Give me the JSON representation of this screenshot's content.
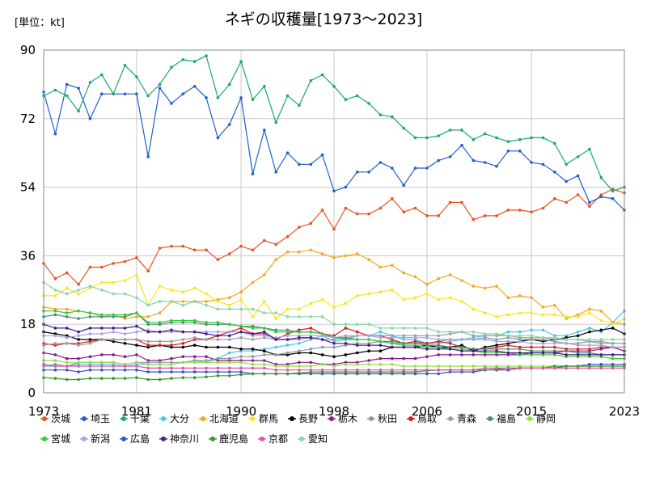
{
  "chart_data": {
    "type": "line",
    "title": "ネギの収穫量[1973〜2023]",
    "unit_label": "[単位：kt]",
    "xlabel": "",
    "ylabel": "",
    "ylim": [
      0,
      90
    ],
    "y_ticks": [
      0,
      18,
      36,
      54,
      72,
      90
    ],
    "x_ticks": [
      1973,
      1981,
      1990,
      1998,
      2006,
      2015,
      2023
    ],
    "grid": true,
    "legend_position": "bottom",
    "x": [
      1973,
      1974,
      1975,
      1976,
      1977,
      1978,
      1979,
      1980,
      1981,
      1982,
      1983,
      1984,
      1985,
      1986,
      1987,
      1988,
      1989,
      1990,
      1991,
      1992,
      1993,
      1994,
      1995,
      1996,
      1997,
      1998,
      1999,
      2000,
      2001,
      2002,
      2003,
      2004,
      2005,
      2006,
      2007,
      2008,
      2009,
      2010,
      2011,
      2012,
      2013,
      2014,
      2015,
      2016,
      2017,
      2018,
      2019,
      2020,
      2021,
      2022,
      2023
    ],
    "series": [
      {
        "name": "茨城",
        "color": "#e8531f",
        "values": [
          34,
          30,
          31.5,
          28.5,
          33,
          33,
          34,
          34.5,
          35.5,
          32,
          38,
          38.5,
          38.5,
          37.5,
          37.5,
          35,
          36.5,
          38.5,
          37.5,
          40,
          39,
          41,
          43.5,
          44.5,
          48,
          43,
          48.5,
          47,
          47,
          48.5,
          51,
          47.5,
          48.5,
          46.5,
          46.5,
          50,
          50,
          45.5,
          46.5,
          46.5,
          48,
          48,
          47.5,
          48.5,
          51,
          50,
          52,
          49,
          52,
          53.5,
          52.5
        ]
      },
      {
        "name": "埼玉",
        "color": "#1f5fd0",
        "values": [
          79,
          68,
          81,
          80,
          72,
          78.5,
          78.5,
          78.5,
          78.5,
          62,
          80,
          76,
          78.5,
          80.5,
          77.5,
          67,
          70.5,
          77.5,
          57.5,
          69,
          58,
          63,
          60,
          60,
          62.5,
          53,
          54,
          58,
          58,
          60.5,
          59,
          54.5,
          59,
          59,
          61,
          62,
          65,
          61,
          60.5,
          59.5,
          63.5,
          63.5,
          60.5,
          60,
          58,
          55.5,
          57,
          50,
          51.5,
          51,
          48
        ]
      },
      {
        "name": "千葉",
        "color": "#1aa774",
        "values": [
          78,
          79.5,
          78,
          74,
          81.5,
          83.5,
          78.5,
          86,
          83,
          78,
          81,
          85.5,
          87.5,
          87,
          88.5,
          77.5,
          81,
          87,
          77,
          80.5,
          71,
          78,
          75.5,
          82,
          83.5,
          80.5,
          77,
          78,
          76,
          73,
          72.5,
          69.5,
          67,
          67,
          67.5,
          69,
          69,
          66.5,
          68,
          67,
          66,
          66.5,
          67,
          67,
          65.5,
          60,
          62,
          64,
          56.5,
          53,
          54
        ]
      },
      {
        "name": "大分",
        "color": "#4fc3f0",
        "values": [
          7,
          7,
          7,
          7.5,
          7.5,
          7.5,
          7.5,
          7,
          7.5,
          7.5,
          7.5,
          7.5,
          8,
          8.5,
          8,
          9,
          10.5,
          11,
          11,
          11.5,
          12,
          12.5,
          13,
          14,
          15,
          13.5,
          14,
          15,
          15,
          16,
          15,
          14,
          14,
          13,
          13,
          13.5,
          14,
          14.5,
          15,
          15,
          16,
          16,
          16.5,
          16.5,
          15,
          15,
          16,
          17,
          16,
          18.5,
          21.5
        ]
      },
      {
        "name": "北海道",
        "color": "#f5a623",
        "values": [
          22.5,
          22,
          22,
          21.5,
          21,
          20,
          20.5,
          19.5,
          20,
          20,
          21,
          24,
          24,
          24,
          24,
          24.5,
          25,
          26.5,
          29,
          31,
          35,
          37,
          37,
          37.5,
          36.5,
          35.5,
          36,
          36.5,
          35,
          33,
          33.5,
          31.5,
          30.5,
          28.5,
          30,
          31,
          29.5,
          28,
          27.5,
          28,
          25,
          25.5,
          25,
          22.5,
          23,
          19.5,
          20.5,
          22,
          21.5,
          18.5,
          18
        ]
      },
      {
        "name": "群馬",
        "color": "#f6e71d",
        "values": [
          25.5,
          25.5,
          27.5,
          26,
          27.5,
          29,
          29,
          29.5,
          31,
          23,
          28,
          27,
          26.5,
          27.5,
          26,
          24,
          23,
          24.5,
          20,
          24,
          19.5,
          22,
          22,
          23.5,
          24.5,
          22.5,
          23.5,
          25.5,
          26,
          26.5,
          27,
          24.5,
          25,
          26,
          24.5,
          25,
          24,
          22,
          21,
          20,
          20.5,
          21,
          21,
          20.5,
          20.5,
          20,
          20,
          21,
          19,
          18,
          19.5
        ]
      },
      {
        "name": "長野",
        "color": "#000000",
        "values": [
          16,
          15.5,
          15,
          14,
          14,
          14,
          13.5,
          13,
          12.5,
          12,
          12.5,
          12,
          12,
          12.5,
          12,
          12,
          12,
          11.5,
          11.5,
          11,
          10,
          10,
          10.5,
          10.5,
          10,
          9.5,
          10,
          10.5,
          11,
          11,
          12,
          12,
          12,
          12.5,
          12,
          12,
          12.5,
          11,
          12,
          12.5,
          13,
          13.5,
          14,
          13.5,
          14,
          14.5,
          15,
          16,
          16.5,
          17,
          15.5
        ]
      },
      {
        "name": "栃木",
        "color": "#8b1a8b",
        "values": [
          10.5,
          10,
          9,
          9,
          9.5,
          10,
          10,
          9.5,
          10,
          8.5,
          8.5,
          9,
          9.5,
          9.5,
          9.5,
          8.5,
          8.5,
          8.5,
          8.5,
          8.5,
          7.5,
          7.5,
          8,
          8,
          7.5,
          7.5,
          8,
          8,
          8.5,
          9,
          9,
          9,
          9,
          9.5,
          10,
          10,
          10,
          10,
          10,
          10,
          10,
          10,
          10.5,
          10.5,
          10.5,
          11,
          11,
          11,
          11.5,
          12,
          11
        ]
      },
      {
        "name": "秋田",
        "color": "#8c97a3",
        "values": [
          7,
          7.5,
          7,
          8,
          8,
          8,
          8,
          7.5,
          8,
          8,
          8,
          8,
          8,
          8.5,
          8.5,
          9,
          9,
          9.5,
          9.5,
          10,
          10,
          10.5,
          11,
          11.5,
          12,
          12,
          12.5,
          13,
          13,
          13.5,
          13,
          13,
          13,
          13,
          13.5,
          14,
          14,
          14,
          14.5,
          14,
          14.5,
          14,
          14,
          14,
          13.5,
          13,
          13,
          13.5,
          13,
          13,
          13
        ]
      },
      {
        "name": "鳥取",
        "color": "#d81b1b",
        "values": [
          13,
          12.5,
          13,
          13,
          13.5,
          14,
          14,
          14,
          14,
          12.5,
          12.5,
          12.5,
          13,
          14,
          14,
          15,
          16,
          17,
          15.5,
          15.5,
          14,
          15.5,
          16.5,
          17,
          15.5,
          15,
          17,
          16,
          15,
          15,
          14,
          13,
          13.5,
          13,
          13.5,
          13,
          12,
          11.5,
          11.5,
          12,
          12.5,
          12,
          12,
          12,
          12,
          11.5,
          11.5,
          11.5,
          12,
          12,
          12
        ]
      },
      {
        "name": "青森",
        "color": "#9e9e9e",
        "values": [
          12.5,
          13,
          13,
          12.5,
          13,
          14,
          14,
          14,
          14,
          13.5,
          13.5,
          13.5,
          14,
          14.5,
          14,
          14,
          14,
          14.5,
          14,
          14.5,
          14,
          14,
          14,
          14.5,
          14,
          14,
          14.5,
          15,
          15,
          15,
          15,
          15,
          15,
          15,
          15,
          15.5,
          16,
          15,
          15,
          15,
          15,
          14.5,
          14.5,
          14.5,
          14,
          14,
          14,
          13.5,
          13.5,
          13,
          13
        ]
      },
      {
        "name": "福島",
        "color": "#4a8a72",
        "values": [
          20,
          20.5,
          20,
          19.5,
          20,
          20,
          20,
          20,
          21,
          18,
          18,
          18.5,
          18.5,
          18.5,
          18,
          18,
          18,
          17.5,
          17.5,
          17,
          16.5,
          16.5,
          16,
          16,
          15.5,
          14.5,
          14.5,
          14,
          14,
          13.5,
          13.5,
          13,
          13,
          12.5,
          12.5,
          12,
          12,
          11.5,
          11.5,
          11.5,
          11.5,
          11.5,
          11,
          11,
          11,
          11,
          10.5,
          10.5,
          10,
          10,
          10
        ]
      },
      {
        "name": "静岡",
        "color": "#90e040",
        "values": [
          8.5,
          8.5,
          8,
          8,
          8,
          8,
          8,
          7.5,
          8,
          7.5,
          7.5,
          7.5,
          8,
          8,
          8,
          8,
          8,
          8,
          7.5,
          7.5,
          7,
          7,
          7,
          7,
          7.5,
          7,
          7.5,
          7.5,
          7.5,
          7.5,
          7.5,
          7,
          7,
          7,
          7,
          7,
          7,
          7,
          7,
          7,
          7,
          7,
          7,
          7,
          7,
          7,
          7,
          7,
          7,
          7,
          7
        ]
      },
      {
        "name": "宮城",
        "color": "#33cc33",
        "values": [
          21.5,
          21.5,
          21,
          21.5,
          21,
          20.5,
          20.5,
          20.5,
          21,
          18.5,
          18.5,
          19,
          19,
          19,
          18.5,
          18.5,
          18,
          17.5,
          17,
          17,
          16,
          16,
          16,
          16,
          15.5,
          14.5,
          14,
          14,
          14,
          13.5,
          13,
          12.5,
          12.5,
          12,
          12,
          11.5,
          11.5,
          11,
          10.5,
          10.5,
          10.5,
          10,
          10,
          10,
          10,
          9.5,
          9.5,
          9.5,
          9.5,
          9,
          9
        ]
      },
      {
        "name": "新潟",
        "color": "#a3a3e8",
        "values": [
          15,
          15,
          14.5,
          15,
          15.5,
          15.5,
          16,
          15.5,
          16,
          16.5,
          16,
          16,
          16,
          16,
          16,
          16,
          16,
          16,
          15,
          15,
          14.5,
          15,
          15,
          15,
          15,
          14.5,
          15,
          15,
          15,
          14.5,
          14.5,
          14.5,
          14.5,
          14.5,
          14,
          14,
          14,
          14,
          14,
          13.5,
          13.5,
          13.5,
          13,
          13,
          13,
          13,
          12.5,
          12.5,
          12.5,
          12,
          12
        ]
      },
      {
        "name": "広島",
        "color": "#3a4fcc",
        "values": [
          6,
          6,
          6,
          5.5,
          6,
          6,
          6,
          6,
          6,
          5.5,
          5.5,
          5.5,
          5.5,
          5.5,
          5.5,
          5.5,
          5.5,
          5.5,
          5,
          5,
          5,
          5,
          5,
          5,
          5,
          5,
          5,
          5,
          5,
          5,
          5,
          5,
          5,
          5,
          5,
          5.5,
          5.5,
          5.5,
          6,
          6,
          6,
          6.5,
          6.5,
          6.5,
          6.5,
          7,
          7,
          7.5,
          7.5,
          7.5,
          7.5
        ]
      },
      {
        "name": "神奈川",
        "color": "#4a1a8a",
        "values": [
          18,
          17,
          17,
          16,
          17,
          17,
          17,
          17,
          17.5,
          16,
          16,
          16.5,
          16,
          16,
          15.5,
          15,
          15,
          16,
          15.5,
          16,
          14,
          14,
          14.5,
          14.5,
          14,
          13,
          13,
          12.5,
          12.5,
          12.5,
          12,
          12,
          12,
          11.5,
          11.5,
          11.5,
          11,
          11,
          11,
          11,
          10.5,
          10.5,
          10.5,
          10.5,
          10.5,
          10,
          10,
          10,
          10,
          10,
          10
        ]
      },
      {
        "name": "鹿児島",
        "color": "#3a9a2a",
        "values": [
          4,
          3.8,
          3.5,
          3.5,
          3.8,
          3.8,
          3.8,
          3.8,
          4,
          3.5,
          3.5,
          3.8,
          4,
          4,
          4.2,
          4.5,
          4.5,
          4.8,
          5,
          5,
          5,
          5,
          5.2,
          5.5,
          5.5,
          5.5,
          5.5,
          5.5,
          5.5,
          5.5,
          5.5,
          5.5,
          5.5,
          5.8,
          6,
          6,
          6,
          6,
          6,
          6.2,
          6.5,
          6.5,
          6.5,
          6.5,
          7,
          7,
          7,
          7,
          7,
          7,
          7
        ]
      },
      {
        "name": "京都",
        "color": "#e056a6",
        "values": [
          7.5,
          7,
          7,
          7,
          7,
          7,
          7,
          7,
          7,
          6.5,
          6.5,
          6.5,
          6.5,
          6.5,
          6.5,
          6.5,
          6.5,
          6.5,
          6.5,
          6.5,
          6,
          6,
          6,
          6,
          6,
          6,
          6,
          6,
          6,
          6,
          6,
          6,
          6,
          6,
          6,
          6,
          6,
          6,
          6.5,
          6.5,
          6.5,
          6.5,
          6.5,
          6.5,
          6.5,
          6.5,
          6.5,
          6.5,
          6.5,
          6.5,
          6.5
        ]
      },
      {
        "name": "愛知",
        "color": "#88d8a0",
        "values": [
          29,
          27,
          26,
          27,
          28,
          27,
          26,
          26,
          25,
          23,
          24,
          24,
          23,
          24,
          23,
          22,
          22,
          22,
          22,
          21,
          21,
          20,
          20,
          20,
          20,
          18,
          18,
          18,
          18,
          17,
          17,
          17,
          17,
          17,
          16,
          16,
          16,
          16,
          15.5,
          15.5,
          15,
          15,
          15,
          14.5,
          14.5,
          14,
          14,
          14,
          14,
          14,
          14
        ]
      }
    ]
  }
}
